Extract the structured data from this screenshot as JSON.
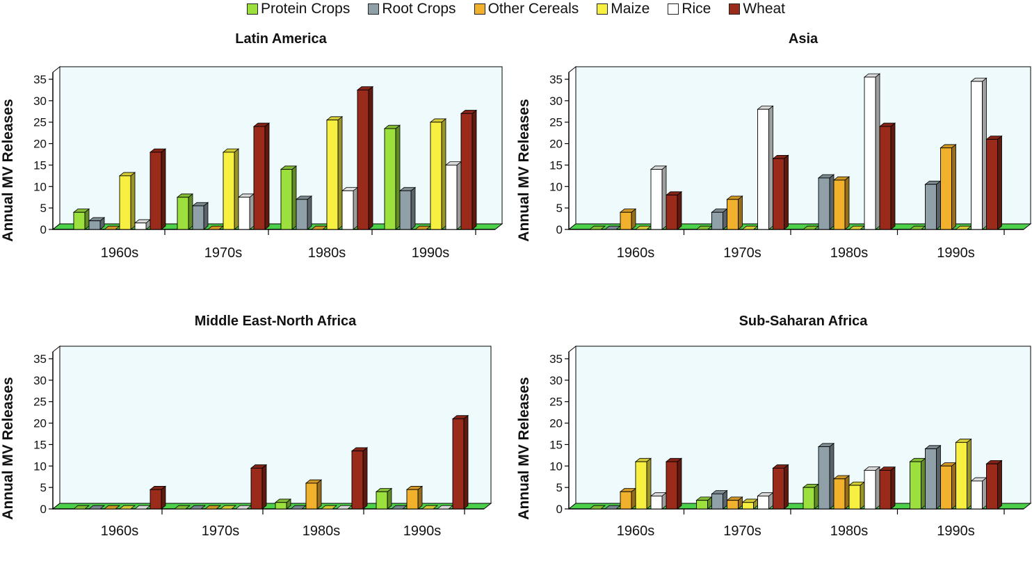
{
  "legend": [
    {
      "name": "Protein Crops",
      "color": "#9be03c"
    },
    {
      "name": "Root Crops",
      "color": "#8fa0a8"
    },
    {
      "name": "Other Cereals",
      "color": "#f2b12c"
    },
    {
      "name": "Maize",
      "color": "#f8f040"
    },
    {
      "name": "Rice",
      "color": "#ffffff"
    },
    {
      "name": "Wheat",
      "color": "#9a2a1a"
    }
  ],
  "chart_data": [
    {
      "type": "bar",
      "title": "Latin America",
      "ylabel": "Annual MV Releases",
      "categories": [
        "1960s",
        "1970s",
        "1980s",
        "1990s"
      ],
      "ylim": [
        0,
        35
      ],
      "yticks": [
        "0",
        "5",
        "10",
        "15",
        "20",
        "25",
        "30",
        "35"
      ],
      "series": [
        {
          "name": "Protein Crops",
          "values": [
            4,
            7.5,
            14,
            23.5
          ]
        },
        {
          "name": "Root Crops",
          "values": [
            2,
            5.5,
            7,
            9
          ]
        },
        {
          "name": "Other Cereals",
          "values": [
            0,
            0,
            0,
            0
          ]
        },
        {
          "name": "Maize",
          "values": [
            12.5,
            18,
            25.5,
            25
          ]
        },
        {
          "name": "Rice",
          "values": [
            1.5,
            7.5,
            9,
            15
          ]
        },
        {
          "name": "Wheat",
          "values": [
            18,
            24,
            32.5,
            27
          ]
        }
      ]
    },
    {
      "type": "bar",
      "title": "Asia",
      "ylabel": "Annual MV Releases",
      "categories": [
        "1960s",
        "1970s",
        "1980s",
        "1990s"
      ],
      "ylim": [
        0,
        35
      ],
      "yticks": [
        "0",
        "5",
        "10",
        "15",
        "20",
        "25",
        "30",
        "35"
      ],
      "series": [
        {
          "name": "Protein Crops",
          "values": [
            0,
            0,
            0,
            0
          ]
        },
        {
          "name": "Root Crops",
          "values": [
            0,
            4,
            12,
            10.5
          ]
        },
        {
          "name": "Other Cereals",
          "values": [
            4,
            7,
            11.5,
            19
          ]
        },
        {
          "name": "Maize",
          "values": [
            0,
            0,
            0,
            0
          ]
        },
        {
          "name": "Rice",
          "values": [
            14,
            28,
            35.5,
            34.5
          ]
        },
        {
          "name": "Wheat",
          "values": [
            8,
            16.5,
            24,
            21
          ]
        }
      ]
    },
    {
      "type": "bar",
      "title": "Middle East-North Africa",
      "ylabel": "Annual MV Releases",
      "categories": [
        "1960s",
        "1970s",
        "1980s",
        "1990s"
      ],
      "ylim": [
        0,
        35
      ],
      "yticks": [
        "0",
        "5",
        "10",
        "15",
        "20",
        "25",
        "30",
        "35"
      ],
      "series": [
        {
          "name": "Protein Crops",
          "values": [
            0,
            0,
            1.5,
            4
          ]
        },
        {
          "name": "Root Crops",
          "values": [
            0,
            0,
            0,
            0
          ]
        },
        {
          "name": "Other Cereals",
          "values": [
            0,
            0,
            6,
            4.5
          ]
        },
        {
          "name": "Maize",
          "values": [
            0,
            0,
            0,
            0
          ]
        },
        {
          "name": "Rice",
          "values": [
            0,
            0,
            0,
            0
          ]
        },
        {
          "name": "Wheat",
          "values": [
            4.5,
            9.5,
            13.5,
            21
          ]
        }
      ]
    },
    {
      "type": "bar",
      "title": "Sub-Saharan Africa",
      "ylabel": "Annual MV Releases",
      "categories": [
        "1960s",
        "1970s",
        "1980s",
        "1990s"
      ],
      "ylim": [
        0,
        35
      ],
      "yticks": [
        "0",
        "5",
        "10",
        "15",
        "20",
        "25",
        "30",
        "35"
      ],
      "series": [
        {
          "name": "Protein Crops",
          "values": [
            0,
            2,
            5,
            11
          ]
        },
        {
          "name": "Root Crops",
          "values": [
            0,
            3.5,
            14.5,
            14
          ]
        },
        {
          "name": "Other Cereals",
          "values": [
            4,
            2,
            7,
            10
          ]
        },
        {
          "name": "Maize",
          "values": [
            11,
            1.5,
            5.5,
            15.5
          ]
        },
        {
          "name": "Rice",
          "values": [
            3,
            3,
            9,
            6.5
          ]
        },
        {
          "name": "Wheat",
          "values": [
            11,
            9.5,
            9,
            10.5
          ]
        }
      ]
    }
  ]
}
